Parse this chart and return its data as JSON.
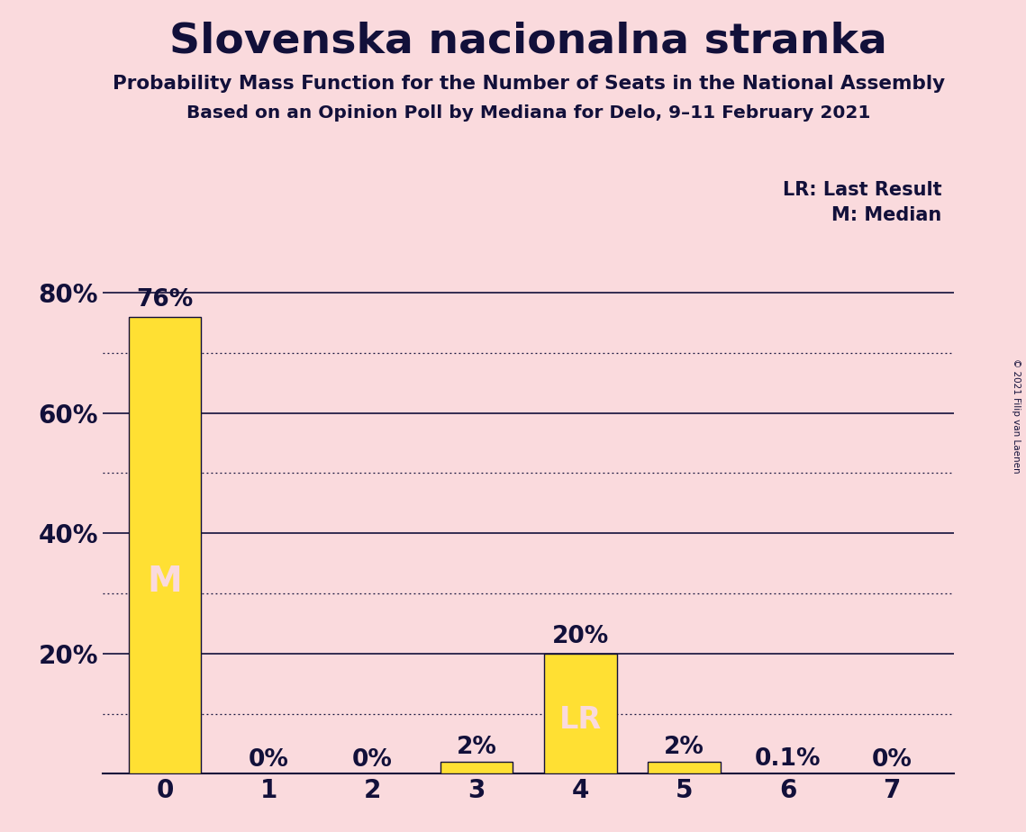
{
  "title": "Slovenska nacionalna stranka",
  "subtitle1": "Probability Mass Function for the Number of Seats in the National Assembly",
  "subtitle2": "Based on an Opinion Poll by Mediana for Delo, 9–11 February 2021",
  "copyright": "© 2021 Filip van Laenen",
  "categories": [
    0,
    1,
    2,
    3,
    4,
    5,
    6,
    7
  ],
  "values": [
    76,
    0,
    0,
    2,
    20,
    2,
    0.1,
    0
  ],
  "bar_color": "#FFE033",
  "background_color": "#FADADD",
  "title_color": "#12103a",
  "label_color": "#12103a",
  "bar_label_color_light": "#FADADD",
  "median_seat": 0,
  "last_result_seat": 4,
  "legend_lr": "LR: Last Result",
  "legend_m": "M: Median",
  "ymax": 83,
  "bar_labels": [
    "76%",
    "0%",
    "0%",
    "2%",
    "20%",
    "2%",
    "0.1%",
    "0%"
  ],
  "dotted_lines": [
    10,
    30,
    50,
    70
  ],
  "solid_lines": [
    20,
    40,
    60,
    80
  ]
}
